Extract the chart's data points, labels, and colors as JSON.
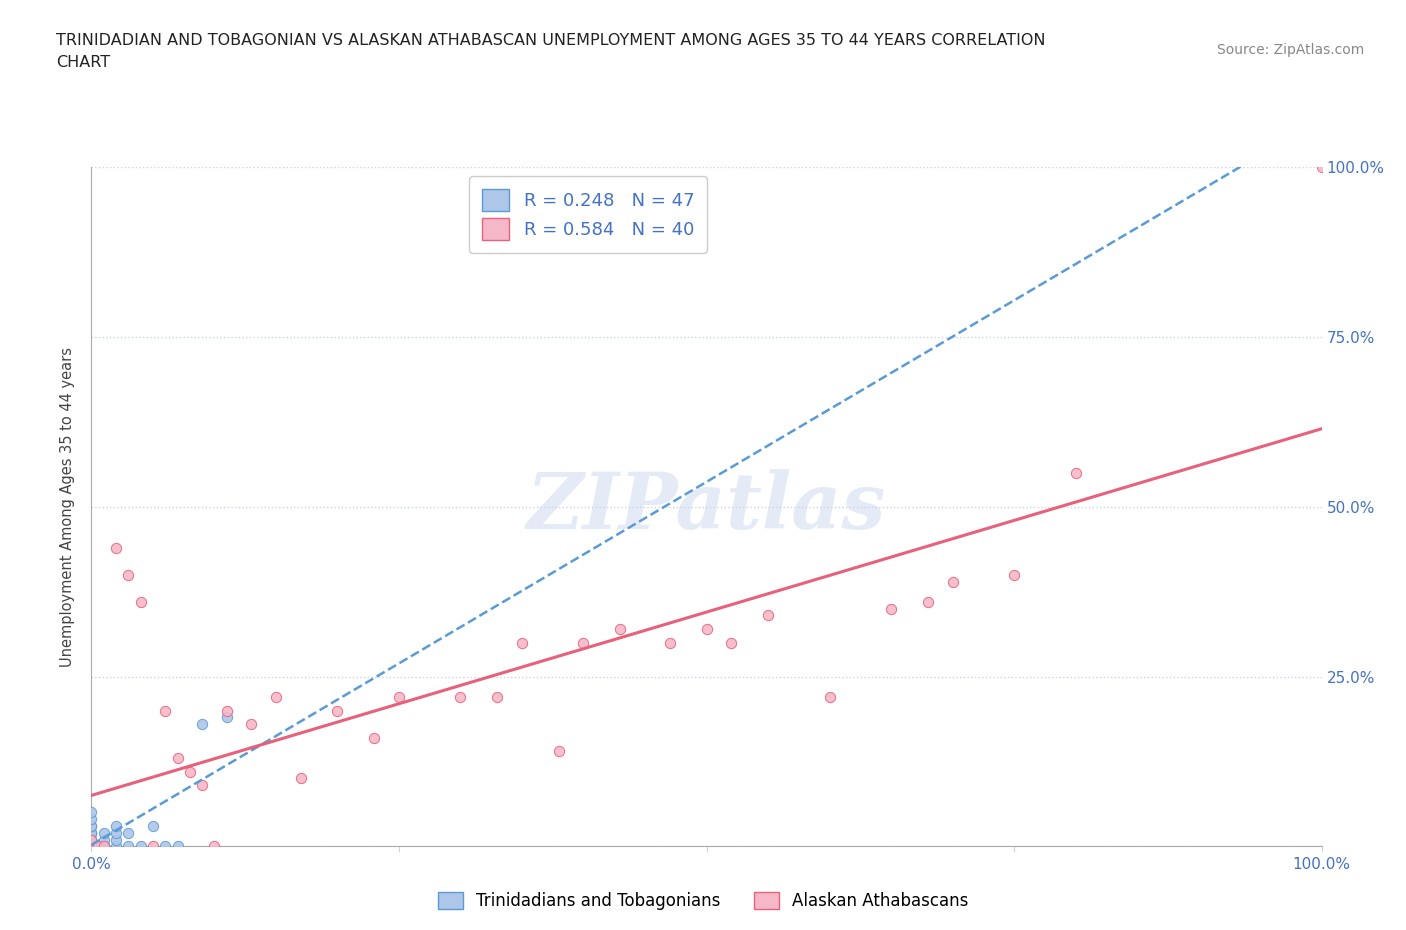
{
  "title_line1": "TRINIDADIAN AND TOBAGONIAN VS ALASKAN ATHABASCAN UNEMPLOYMENT AMONG AGES 35 TO 44 YEARS CORRELATION",
  "title_line2": "CHART",
  "source": "Source: ZipAtlas.com",
  "ylabel": "Unemployment Among Ages 35 to 44 years",
  "blue_R": 0.248,
  "blue_N": 47,
  "pink_R": 0.584,
  "pink_N": 40,
  "blue_color": "#aec6e8",
  "pink_color": "#f5b8c8",
  "blue_line_color": "#5b9bd5",
  "pink_line_color": "#e8607a",
  "axis_label_color": "#4472c4",
  "background_color": "#ffffff",
  "grid_color": "#c8d4e8",
  "blue_scatter_x": [
    0.0,
    0.0,
    0.0,
    0.0,
    0.0,
    0.0,
    0.0,
    0.0,
    0.0,
    0.0,
    0.0,
    0.0,
    0.0,
    0.0,
    0.0,
    0.0,
    0.0,
    0.0,
    0.0,
    0.0,
    0.0,
    0.0,
    0.0,
    0.0,
    0.0,
    0.0,
    0.0,
    0.005,
    0.005,
    0.01,
    0.01,
    0.01,
    0.01,
    0.01,
    0.01,
    0.02,
    0.02,
    0.02,
    0.02,
    0.03,
    0.03,
    0.04,
    0.05,
    0.06,
    0.07,
    0.09,
    0.11
  ],
  "blue_scatter_y": [
    0.0,
    0.0,
    0.0,
    0.0,
    0.0,
    0.0,
    0.0,
    0.0,
    0.0,
    0.0,
    0.0,
    0.0,
    0.0,
    0.0,
    0.005,
    0.005,
    0.01,
    0.01,
    0.01,
    0.01,
    0.02,
    0.02,
    0.02,
    0.03,
    0.03,
    0.04,
    0.05,
    0.0,
    0.0,
    0.0,
    0.0,
    0.0,
    0.0,
    0.01,
    0.02,
    0.0,
    0.01,
    0.02,
    0.03,
    0.0,
    0.02,
    0.0,
    0.03,
    0.0,
    0.0,
    0.18,
    0.19
  ],
  "pink_scatter_x": [
    0.0,
    0.0,
    0.0,
    0.0,
    0.0,
    0.005,
    0.01,
    0.02,
    0.03,
    0.04,
    0.05,
    0.06,
    0.07,
    0.08,
    0.09,
    0.1,
    0.11,
    0.13,
    0.15,
    0.17,
    0.2,
    0.23,
    0.25,
    0.3,
    0.33,
    0.35,
    0.38,
    0.4,
    0.43,
    0.47,
    0.5,
    0.52,
    0.55,
    0.6,
    0.65,
    0.68,
    0.7,
    0.75,
    0.8,
    1.0
  ],
  "pink_scatter_y": [
    0.0,
    0.0,
    0.0,
    0.0,
    0.01,
    0.0,
    0.0,
    0.44,
    0.4,
    0.36,
    0.0,
    0.2,
    0.13,
    0.11,
    0.09,
    0.0,
    0.2,
    0.18,
    0.22,
    0.1,
    0.2,
    0.16,
    0.22,
    0.22,
    0.22,
    0.3,
    0.14,
    0.3,
    0.32,
    0.3,
    0.32,
    0.3,
    0.34,
    0.22,
    0.35,
    0.36,
    0.39,
    0.4,
    0.55,
    1.0
  ],
  "dot_size": 55,
  "xlim": [
    0.0,
    1.0
  ],
  "ylim": [
    0.0,
    1.0
  ]
}
